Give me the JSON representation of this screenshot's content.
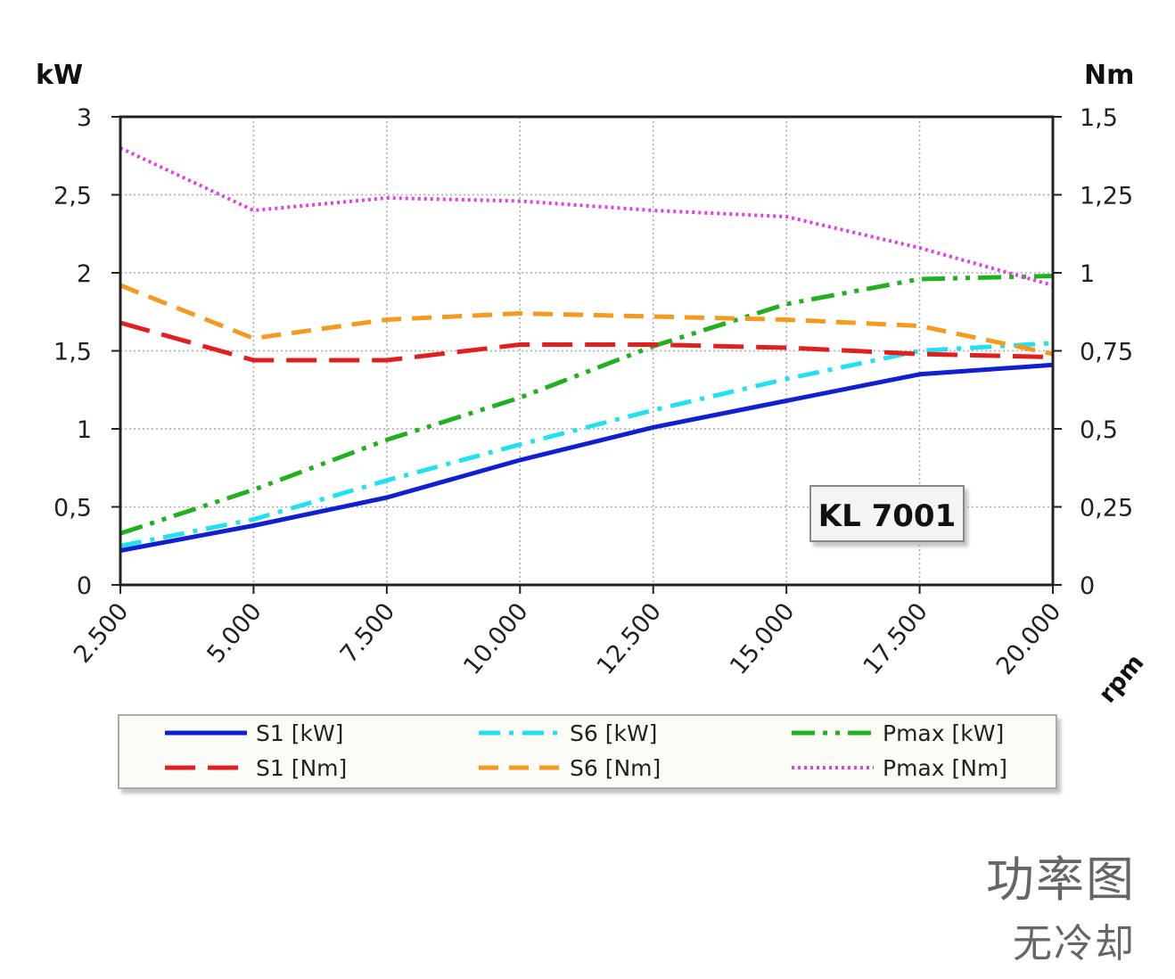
{
  "chart_data": {
    "type": "line",
    "title": "",
    "badge": "KL 7001",
    "xlabel": "rpm",
    "ylabel_left": "kW",
    "ylabel_right": "Nm",
    "x": [
      2500,
      5000,
      7500,
      10000,
      12500,
      15000,
      17500,
      20000
    ],
    "x_tick_labels": [
      "2.500",
      "5.000",
      "7.500",
      "10.000",
      "12.500",
      "15.000",
      "17.500",
      "20.000"
    ],
    "ylim_left": [
      0,
      3
    ],
    "ylim_right": [
      0,
      1.5
    ],
    "y_left_tick_labels": [
      "0",
      "0,5",
      "1",
      "1,5",
      "2",
      "2,5",
      "3"
    ],
    "y_right_tick_labels": [
      "0",
      "0,25",
      "0,5",
      "0,75",
      "1",
      "1,25",
      "1,5"
    ],
    "grid": true,
    "legend_position": "bottom",
    "series": [
      {
        "name": "S1 [kW]",
        "axis": "left",
        "color": "#1020d0",
        "style": "solid",
        "values": [
          0.22,
          0.38,
          0.56,
          0.8,
          1.01,
          1.18,
          1.35,
          1.41
        ]
      },
      {
        "name": "S6 [kW]",
        "axis": "left",
        "color": "#22e0f0",
        "style": "dashdot",
        "values": [
          0.25,
          0.42,
          0.67,
          0.9,
          1.12,
          1.32,
          1.5,
          1.55
        ]
      },
      {
        "name": "Pmax [kW]",
        "axis": "left",
        "color": "#22b022",
        "style": "dashdotdot",
        "values": [
          0.33,
          0.61,
          0.93,
          1.2,
          1.53,
          1.8,
          1.96,
          1.98
        ]
      },
      {
        "name": "S1 [Nm]",
        "axis": "right",
        "color": "#e02020",
        "style": "longdash",
        "values": [
          0.84,
          0.72,
          0.72,
          0.77,
          0.77,
          0.76,
          0.74,
          0.73
        ]
      },
      {
        "name": "S6 [Nm]",
        "axis": "right",
        "color": "#f59a20",
        "style": "dash",
        "values": [
          0.96,
          0.79,
          0.85,
          0.87,
          0.86,
          0.85,
          0.83,
          0.74
        ]
      },
      {
        "name": "Pmax [Nm]",
        "axis": "right",
        "color": "#e040e0",
        "style": "dot",
        "values": [
          1.4,
          1.2,
          1.24,
          1.23,
          1.2,
          1.18,
          1.08,
          0.96
        ]
      }
    ]
  },
  "caption": {
    "title": "功率图",
    "subtitle": "无冷却"
  }
}
